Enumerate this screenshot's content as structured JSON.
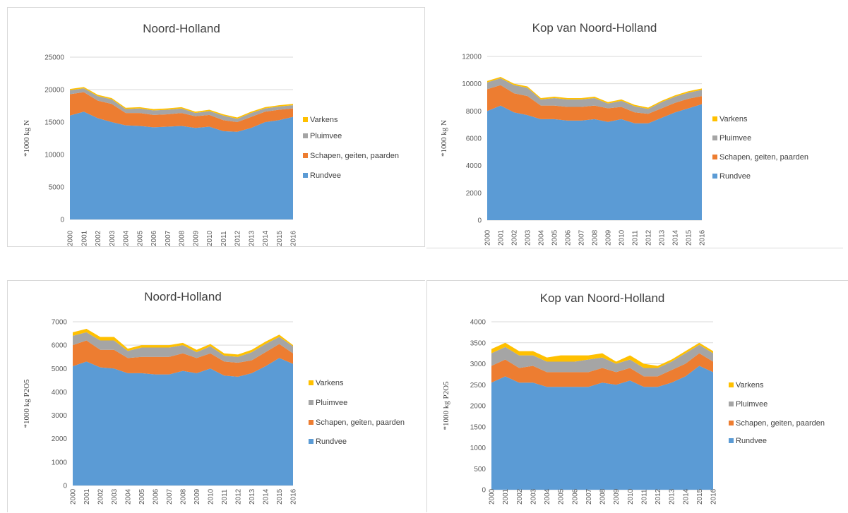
{
  "chart_data": [
    {
      "type": "area",
      "stacked": true,
      "title": "Noord-Holland",
      "xlabel": "",
      "ylabel": "*1000 kg N",
      "ylim": [
        0,
        25000
      ],
      "yticks": [
        0,
        5000,
        10000,
        15000,
        20000,
        25000
      ],
      "grid": true,
      "legend": "right",
      "x": [
        "2000",
        "2001",
        "2002",
        "2003",
        "2004",
        "2005",
        "2006",
        "2007",
        "2008",
        "2009",
        "2010",
        "2011",
        "2012",
        "2013",
        "2014",
        "2015",
        "2016"
      ],
      "series": [
        {
          "name": "Rundvee",
          "color": "#5b9bd5",
          "values": [
            16000,
            16600,
            15600,
            15000,
            14500,
            14400,
            14200,
            14300,
            14400,
            14100,
            14300,
            13600,
            13500,
            14100,
            15000,
            15300,
            15800
          ]
        },
        {
          "name": "Schapen, geiten, paarden",
          "color": "#ed7d31",
          "values": [
            3300,
            3000,
            2700,
            2800,
            1900,
            2000,
            1900,
            1900,
            2000,
            1800,
            1800,
            1700,
            1500,
            1700,
            1600,
            1600,
            1300
          ]
        },
        {
          "name": "Pluimvee",
          "color": "#a5a5a5",
          "values": [
            600,
            600,
            700,
            700,
            600,
            700,
            700,
            700,
            700,
            500,
            600,
            700,
            500,
            600,
            500,
            500,
            500
          ]
        },
        {
          "name": "Varkens",
          "color": "#ffc000",
          "values": [
            200,
            200,
            200,
            200,
            200,
            200,
            200,
            200,
            200,
            200,
            200,
            200,
            200,
            200,
            200,
            200,
            200
          ]
        }
      ]
    },
    {
      "type": "area",
      "stacked": true,
      "title": "Kop van Noord-Holland",
      "xlabel": "",
      "ylabel": "*1000 kg N",
      "ylim": [
        0,
        12000
      ],
      "yticks": [
        0,
        2000,
        4000,
        6000,
        8000,
        10000,
        12000
      ],
      "grid": true,
      "legend": "right",
      "x": [
        "2000",
        "2001",
        "2002",
        "2003",
        "2004",
        "2005",
        "2006",
        "2007",
        "2008",
        "2009",
        "2010",
        "2011",
        "2012",
        "2013",
        "2014",
        "2015",
        "2016"
      ],
      "series": [
        {
          "name": "Rundvee",
          "color": "#5b9bd5",
          "values": [
            8000,
            8400,
            7900,
            7700,
            7400,
            7400,
            7300,
            7300,
            7400,
            7200,
            7400,
            7100,
            7100,
            7500,
            7900,
            8200,
            8500
          ]
        },
        {
          "name": "Schapen, geiten, paarden",
          "color": "#ed7d31",
          "values": [
            1600,
            1500,
            1400,
            1400,
            1000,
            1000,
            1000,
            1000,
            1000,
            1000,
            900,
            800,
            700,
            700,
            700,
            700,
            600
          ]
        },
        {
          "name": "Pluimvee",
          "color": "#a5a5a5",
          "values": [
            500,
            500,
            600,
            600,
            450,
            550,
            550,
            550,
            550,
            350,
            450,
            450,
            350,
            450,
            450,
            450,
            450
          ]
        },
        {
          "name": "Varkens",
          "color": "#ffc000",
          "values": [
            100,
            100,
            100,
            100,
            100,
            100,
            100,
            100,
            100,
            100,
            100,
            100,
            100,
            100,
            100,
            100,
            100
          ]
        }
      ]
    },
    {
      "type": "area",
      "stacked": true,
      "title": "Noord-Holland",
      "xlabel": "",
      "ylabel": "*1000 kg P2O5",
      "ylim": [
        0,
        7000
      ],
      "yticks": [
        0,
        1000,
        2000,
        3000,
        4000,
        5000,
        6000,
        7000
      ],
      "grid": true,
      "legend": "right",
      "x": [
        "2000",
        "2001",
        "2002",
        "2003",
        "2004",
        "2005",
        "2006",
        "2007",
        "2008",
        "2009",
        "2010",
        "2011",
        "2012",
        "2013",
        "2014",
        "2015",
        "2016"
      ],
      "series": [
        {
          "name": "Rundvee",
          "color": "#5b9bd5",
          "values": [
            5100,
            5300,
            5050,
            5000,
            4800,
            4800,
            4750,
            4750,
            4900,
            4800,
            5000,
            4700,
            4650,
            4800,
            5100,
            5450,
            5200
          ]
        },
        {
          "name": "Schapen, geiten, paarden",
          "color": "#ed7d31",
          "values": [
            900,
            900,
            750,
            800,
            650,
            700,
            750,
            750,
            750,
            650,
            650,
            600,
            600,
            550,
            600,
            600,
            450
          ]
        },
        {
          "name": "Pluimvee",
          "color": "#a5a5a5",
          "values": [
            400,
            350,
            400,
            400,
            300,
            400,
            400,
            400,
            350,
            250,
            300,
            250,
            250,
            350,
            350,
            300,
            300
          ]
        },
        {
          "name": "Varkens",
          "color": "#ffc000",
          "values": [
            150,
            150,
            150,
            150,
            100,
            100,
            100,
            100,
            100,
            100,
            100,
            100,
            100,
            100,
            100,
            100,
            50
          ]
        }
      ]
    },
    {
      "type": "area",
      "stacked": true,
      "title": "Kop van Noord-Holland",
      "xlabel": "",
      "ylabel": "*1000 kg P2O5",
      "ylim": [
        0,
        4000
      ],
      "yticks": [
        0,
        500,
        1000,
        1500,
        2000,
        2500,
        3000,
        3500,
        4000
      ],
      "grid": true,
      "legend": "right",
      "x": [
        "2000",
        "2001",
        "2002",
        "2003",
        "2004",
        "2005",
        "2006",
        "2007",
        "2008",
        "2009",
        "2010",
        "2011",
        "2012",
        "2013",
        "2014",
        "2015",
        "2016"
      ],
      "series": [
        {
          "name": "Rundvee",
          "color": "#5b9bd5",
          "values": [
            2550,
            2700,
            2550,
            2550,
            2450,
            2450,
            2450,
            2450,
            2550,
            2500,
            2600,
            2450,
            2450,
            2550,
            2700,
            2950,
            2800
          ]
        },
        {
          "name": "Schapen, geiten, paarden",
          "color": "#ed7d31",
          "values": [
            400,
            400,
            350,
            400,
            350,
            350,
            350,
            350,
            350,
            300,
            300,
            250,
            250,
            300,
            300,
            300,
            250
          ]
        },
        {
          "name": "Pluimvee",
          "color": "#a5a5a5",
          "values": [
            300,
            300,
            300,
            250,
            250,
            250,
            250,
            300,
            250,
            200,
            200,
            200,
            200,
            200,
            250,
            200,
            200
          ]
        },
        {
          "name": "Varkens",
          "color": "#ffc000",
          "values": [
            100,
            100,
            100,
            100,
            100,
            150,
            150,
            100,
            100,
            50,
            100,
            100,
            50,
            50,
            50,
            50,
            50
          ]
        }
      ]
    }
  ]
}
